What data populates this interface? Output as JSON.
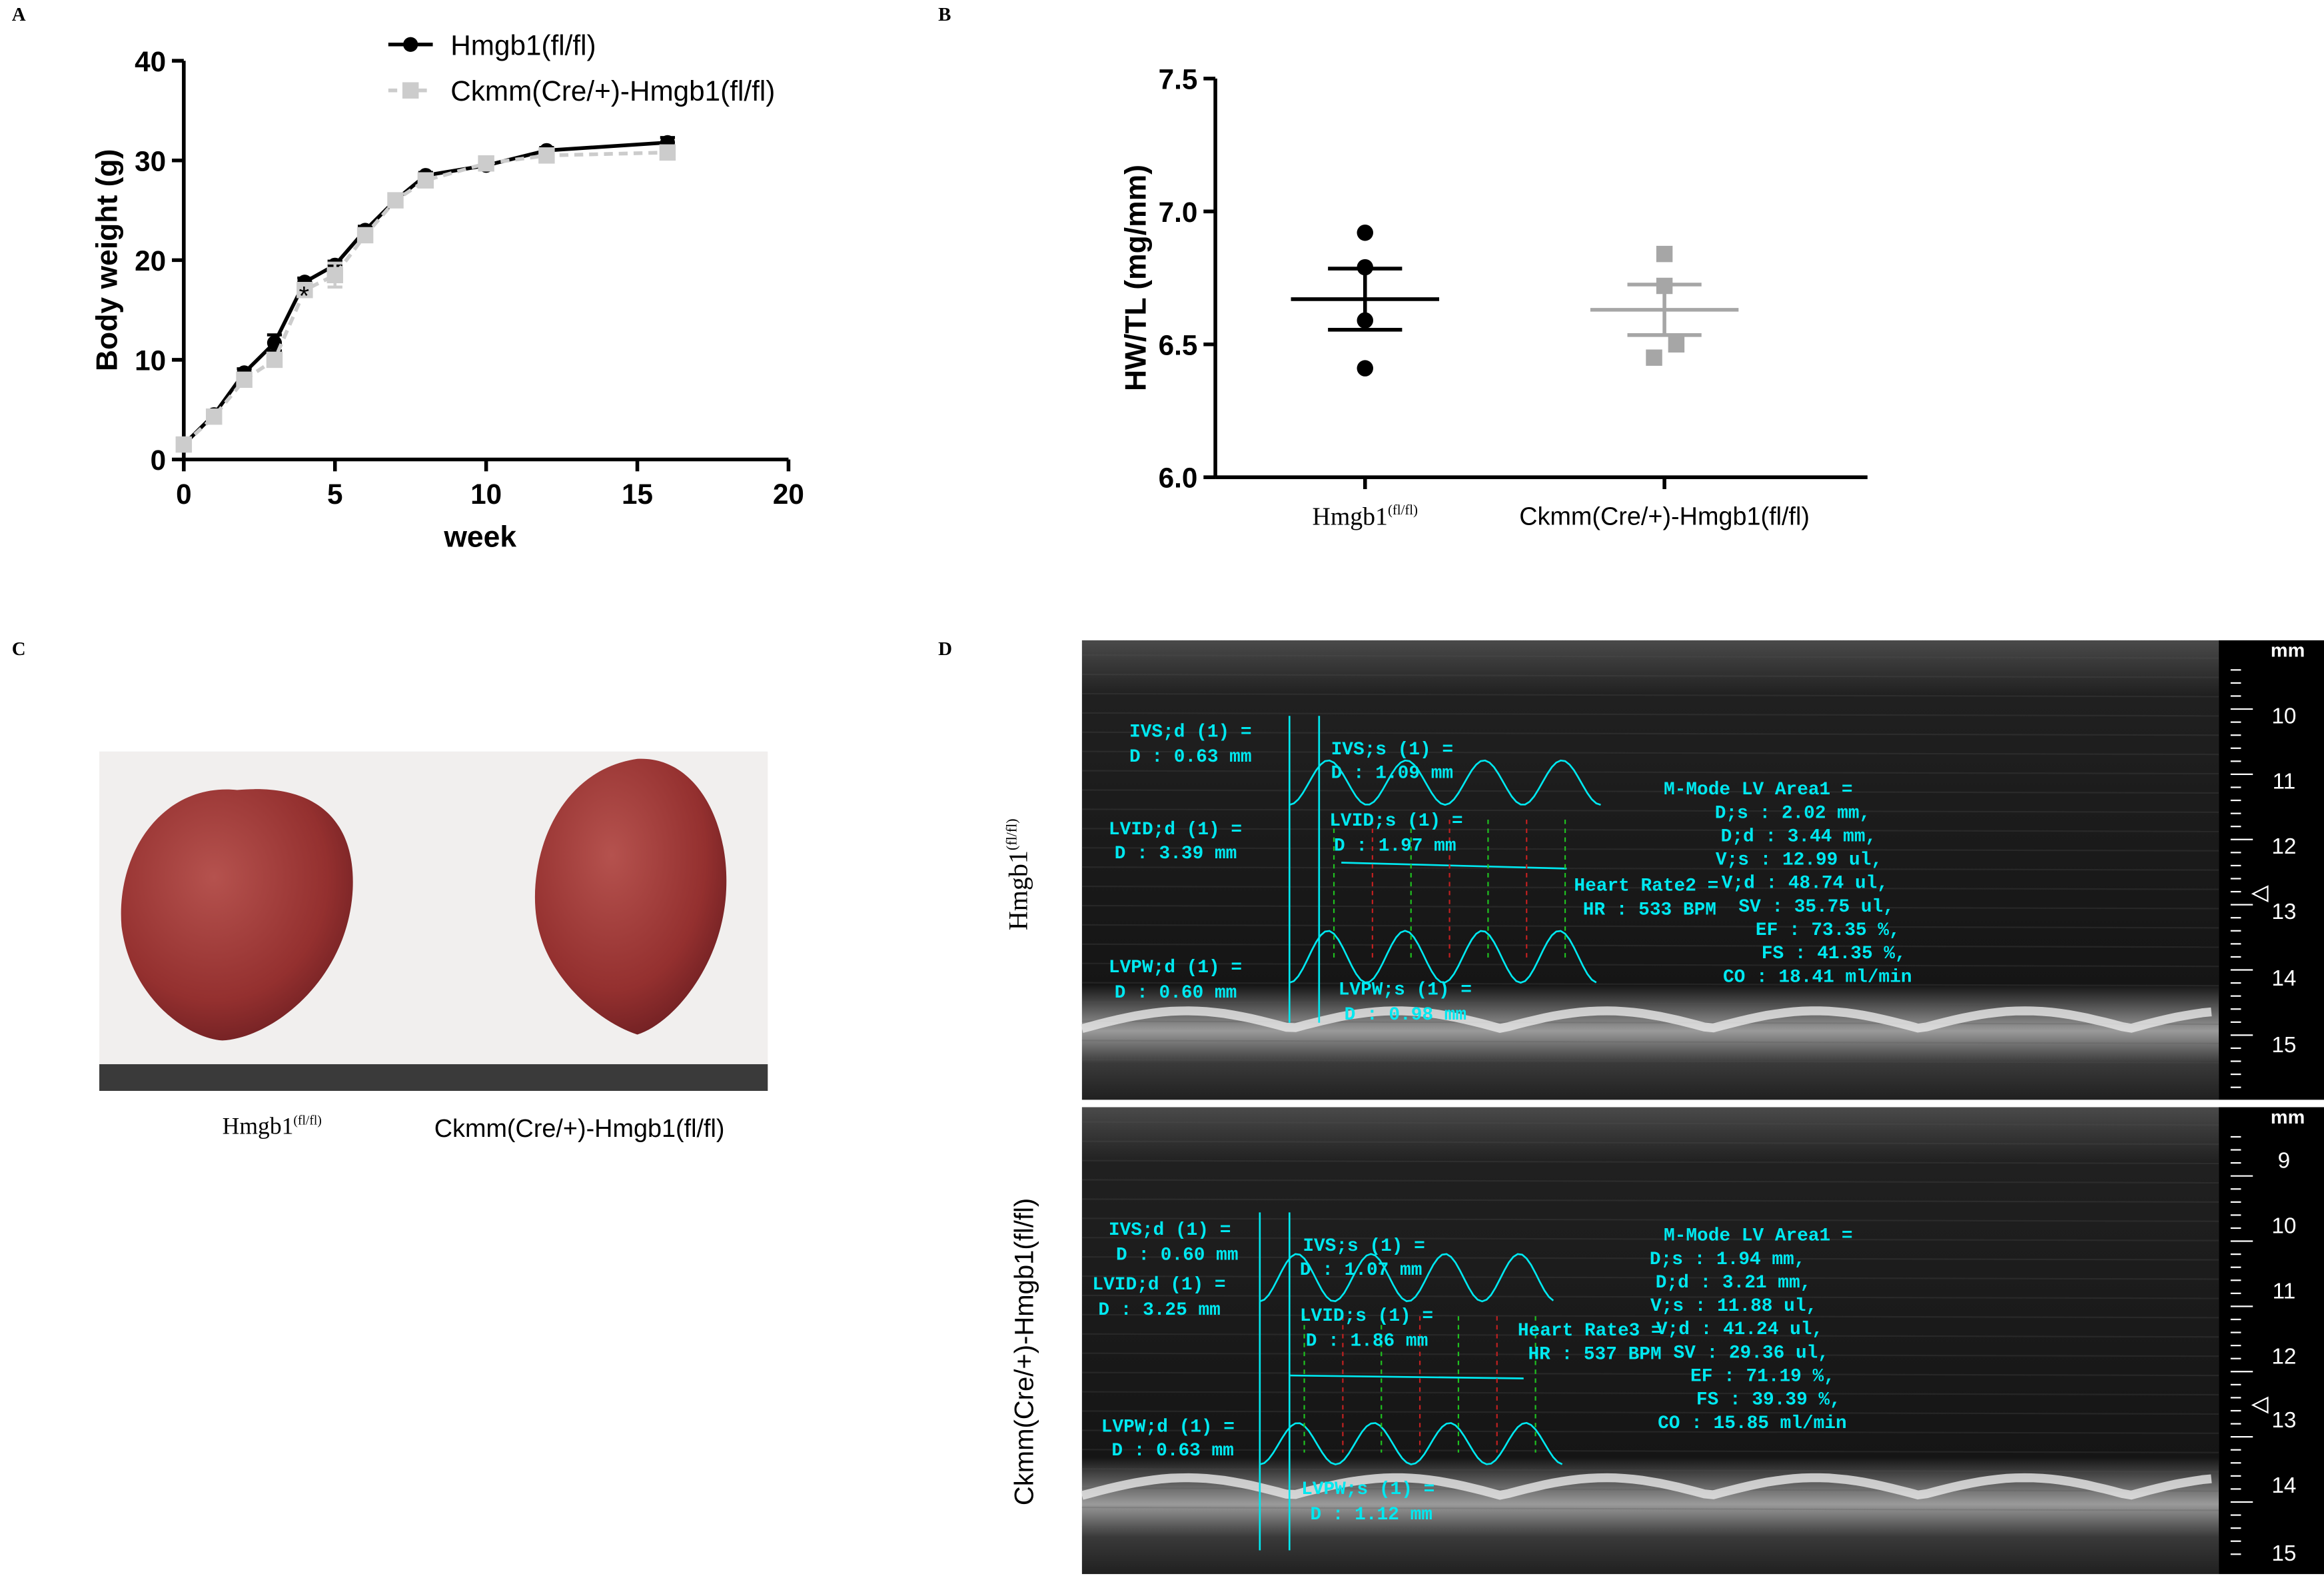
{
  "panel_labels": [
    "A",
    "B",
    "C",
    "D"
  ],
  "chart_data": [
    {
      "type": "line",
      "ylabel": "Body weight (g)",
      "xlabel": "week",
      "x": [
        0,
        1,
        2,
        3,
        4,
        5,
        6,
        7,
        8,
        10,
        12,
        16
      ],
      "series": [
        {
          "name": "Hmgb1(fl/fl)",
          "color": "#000000",
          "marker": "circle",
          "line_style": "solid",
          "values": [
            1.5,
            4.5,
            8.7,
            11.7,
            17.8,
            19.5,
            23,
            26,
            28.5,
            29.5,
            31,
            31.8
          ],
          "errors": [
            0.2,
            0.3,
            0.4,
            0.8,
            0.4,
            0.4,
            0.4,
            0.3,
            0.3,
            0.3,
            0.3,
            0.5
          ]
        },
        {
          "name": "Ckmm(Cre/+)-Hmgb1(fl/fl)",
          "color": "#cccccc",
          "marker": "square",
          "line_style": "dashed",
          "values": [
            1.5,
            4.3,
            8,
            10,
            17,
            18.5,
            22.5,
            26,
            28,
            29.7,
            30.5,
            30.8
          ],
          "errors": [
            0.2,
            0.3,
            0.4,
            0.4,
            0.4,
            1.2,
            0.4,
            0.3,
            0.3,
            0.3,
            0.3,
            0.3
          ]
        }
      ],
      "annotation": "*",
      "xlim": [
        0,
        20
      ],
      "xticks": [
        0,
        5,
        10,
        15,
        20
      ],
      "ylim": [
        0,
        40
      ],
      "yticks": [
        0,
        10,
        20,
        30,
        40
      ],
      "legend": "top"
    },
    {
      "type": "dot",
      "ylabel": "HW/TL (mg/mm)",
      "groups": [
        {
          "label": {
            "text": "Hmgb1",
            "sup": "(fl/fl)"
          },
          "color": "#000000",
          "marker": "circle",
          "values": [
            6.92,
            6.79,
            6.59,
            6.41
          ],
          "mean": 6.67,
          "sem": 0.115
        },
        {
          "label": {
            "text": "Ckmm(Cre/+)-Hmgb1(fl/fl)"
          },
          "color": "#a6a6a6",
          "marker": "square",
          "values": [
            6.84,
            6.72,
            6.5,
            6.45
          ],
          "mean": 6.63,
          "sem": 0.095
        }
      ],
      "ylim": [
        6.0,
        7.5
      ],
      "yticks": [
        {
          "value": 6.0,
          "label": "6.0"
        },
        {
          "value": 6.5,
          "label": "6.5"
        },
        {
          "value": 7.0,
          "label": "7.0"
        },
        {
          "value": 7.5,
          "label": "7.5"
        }
      ]
    }
  ],
  "photo": {
    "labels": [
      {
        "text": "Hmgb1",
        "sup": "(fl/fl)"
      },
      {
        "text": "Ckmm(Cre/+)-Hmgb1(fl/fl)"
      }
    ]
  },
  "echo": {
    "panels": [
      {
        "side_label": {
          "text": "Hmgb1",
          "sup": "(fl/fl)"
        },
        "unit": "mm",
        "ruler": [
          "10",
          "11",
          "12",
          "13",
          "14",
          "15"
        ],
        "labels": [
          "IVS;d (1) =",
          "D : 0.63 mm",
          "IVS;s (1) =",
          "D : 1.09 mm",
          "LVID;d (1) =",
          "D : 3.39 mm",
          "LVID;s (1) =",
          "D : 1.97 mm",
          "LVPW;d (1) =",
          "D : 0.60 mm",
          "LVPW;s (1) =",
          "D : 0.98 mm",
          "Heart Rate2 =",
          "HR : 533 BPM"
        ],
        "summary": [
          "M-Mode LV Area1 =",
          "D;s : 2.02 mm,",
          "D;d : 3.44 mm,",
          "V;s : 12.99 ul,",
          "V;d : 48.74 ul,",
          "SV : 35.75 ul,",
          "EF : 73.35 %,",
          "FS : 41.35 %,",
          "CO : 18.41 ml/min"
        ]
      },
      {
        "side_label": {
          "text": "Ckmm(Cre/+)-Hmgb1(fl/fl)"
        },
        "unit": "mm",
        "ruler": [
          "9",
          "10",
          "11",
          "12",
          "13",
          "14",
          "15"
        ],
        "labels": [
          "IVS;d (1) =",
          "D : 0.60 mm",
          "IVS;s (1) =",
          "D : 1.07 mm",
          "LVID;d (1) =",
          "D : 3.25 mm",
          "LVID;s (1) =",
          "D : 1.86 mm",
          "LVPW;d (1) =",
          "D : 0.63 mm",
          "LVPW;s (1) =",
          "D : 1.12 mm",
          "Heart Rate3 =",
          "HR : 537 BPM"
        ],
        "summary": [
          "M-Mode LV Area1 =",
          "D;s : 1.94 mm,",
          "D;d : 3.21 mm,",
          "V;s : 11.88 ul,",
          "V;d : 41.24 ul,",
          "SV : 29.36 ul,",
          "EF : 71.19 %,",
          "FS : 39.39 %,",
          "CO : 15.85 ml/min"
        ]
      }
    ]
  }
}
